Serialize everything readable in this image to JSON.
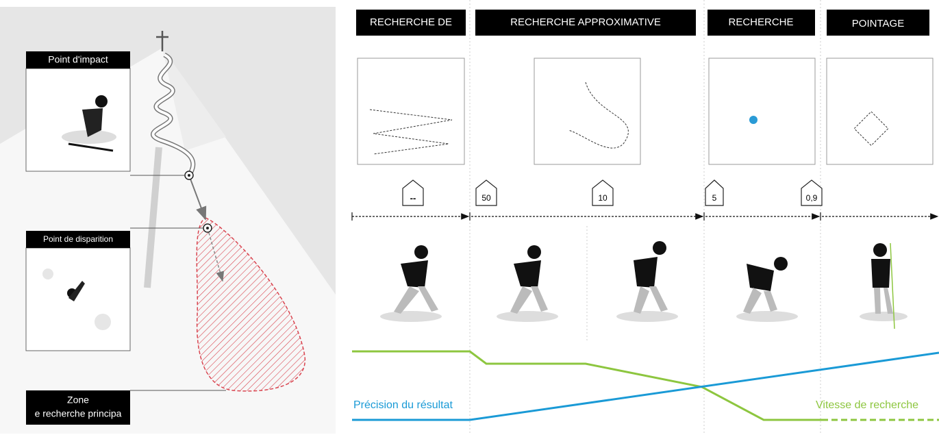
{
  "left_panel": {
    "impact_label": "Point d'impact",
    "disappearance_label": "Point de disparition",
    "zone_label": [
      "Zone",
      "e recherche principa"
    ]
  },
  "phases": [
    {
      "title": "RECHERCHE DE"
    },
    {
      "title": "RECHERCHE APPROXIMATIVE"
    },
    {
      "title": "RECHERCHE"
    },
    {
      "title": "POINTAGE"
    }
  ],
  "signs": [
    "--",
    "50",
    "10",
    "5",
    "0,9"
  ],
  "curves": {
    "precision_label": "Précision du résultat",
    "speed_label": "Vitesse de recherche"
  }
}
